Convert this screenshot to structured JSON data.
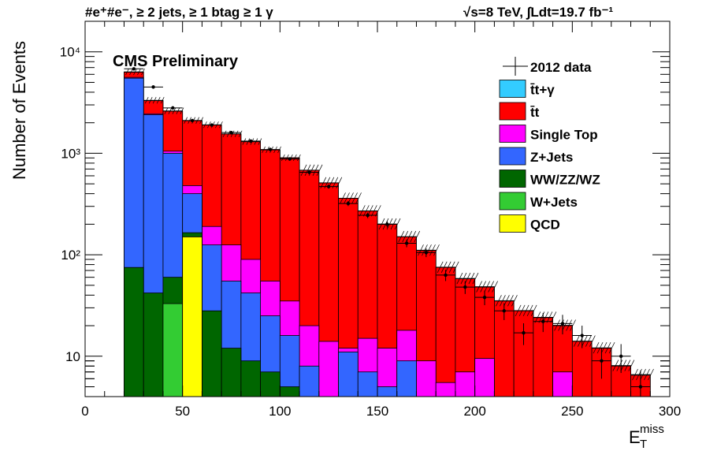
{
  "header": {
    "left": "#e⁺#e⁻, ≥ 2 jets, ≥ 1 btag ≥ 1 γ",
    "right": "√s=8 TeV,  ∫Ldt=19.7 fb⁻¹"
  },
  "chart_data": {
    "type": "bar",
    "stacked": true,
    "log_y": true,
    "title": "CMS Preliminary",
    "xlabel_main": "E",
    "xlabel_sup": "miss",
    "xlabel_sub": "T",
    "ylabel": "Number of Events",
    "xlim": [
      0,
      300
    ],
    "ylim": [
      4,
      20000
    ],
    "legend_position": "top-right",
    "x_ticks": [
      0,
      50,
      100,
      150,
      200,
      250,
      300
    ],
    "y_ticks": [
      {
        "value": 10,
        "label": "10"
      },
      {
        "value": 100,
        "label": "10²"
      },
      {
        "value": 1000,
        "label": "10³"
      },
      {
        "value": 10000,
        "label": "10⁴"
      }
    ],
    "bin_edges": [
      20,
      30,
      40,
      50,
      60,
      70,
      80,
      90,
      100,
      110,
      120,
      130,
      140,
      150,
      160,
      170,
      180,
      190,
      200,
      210,
      220,
      230,
      240,
      250,
      260,
      270,
      280,
      290
    ],
    "stack_totals": [
      {
        "name": "QCD",
        "color": "#ffff00",
        "values": [
          0,
          0,
          0,
          150,
          0,
          0,
          0,
          0,
          0,
          0,
          0,
          0,
          0,
          0,
          0,
          0,
          0,
          0,
          0,
          0,
          0,
          0,
          0,
          0,
          0,
          0,
          0
        ]
      },
      {
        "name": "W+Jets",
        "color": "#33cc33",
        "values": [
          0,
          0,
          33,
          150,
          0,
          0,
          0,
          0,
          0,
          0,
          0,
          0,
          0,
          0,
          0,
          0,
          0,
          0,
          0,
          0,
          0,
          0,
          0,
          0,
          0,
          0,
          0
        ]
      },
      {
        "name": "WW/ZZ/WZ",
        "color": "#006600",
        "values": [
          75,
          42,
          60,
          165,
          28,
          12,
          9,
          7,
          5,
          0,
          0,
          0,
          0,
          0,
          0,
          0,
          0,
          0,
          0,
          0,
          0,
          0,
          0,
          0,
          0,
          0,
          0
        ]
      },
      {
        "name": "Z+Jets",
        "color": "#3366ff",
        "values": [
          5500,
          2400,
          1000,
          400,
          125,
          55,
          42,
          25,
          16,
          8,
          0,
          11,
          7,
          5,
          9,
          0,
          0,
          0,
          0,
          0,
          0,
          0,
          0,
          0,
          0,
          0,
          0
        ]
      },
      {
        "name": "Single Top",
        "color": "#ff00ff",
        "values": [
          5600,
          2450,
          1050,
          480,
          190,
          125,
          90,
          55,
          35,
          20,
          14,
          12,
          15,
          12,
          18,
          9,
          5.5,
          7,
          9.5,
          0,
          0,
          0,
          7,
          0,
          0,
          0,
          0
        ]
      },
      {
        "name": "t̄t",
        "color": "#ff0000",
        "values": [
          6300,
          3300,
          2600,
          2100,
          1900,
          1550,
          1300,
          1080,
          900,
          680,
          510,
          360,
          270,
          200,
          150,
          110,
          75,
          58,
          48,
          35,
          28,
          24,
          20,
          14,
          12,
          8,
          6.5
        ]
      },
      {
        "name": "t̄t+γ",
        "color": "#33ccff",
        "values": [
          6350,
          3330,
          2620,
          2110,
          1910,
          1555,
          1305,
          1085,
          905,
          682,
          512,
          361,
          271,
          201,
          151,
          111,
          75.5,
          58.5,
          48.5,
          35.3,
          28.2,
          24.2,
          20.2,
          14.1,
          12.1,
          8.1,
          6.6
        ]
      }
    ],
    "data_points": [
      {
        "x": 25,
        "y": 6800
      },
      {
        "x": 35,
        "y": 4500
      },
      {
        "x": 45,
        "y": 2800
      },
      {
        "x": 55,
        "y": 2100
      },
      {
        "x": 65,
        "y": 1900
      },
      {
        "x": 75,
        "y": 1600
      },
      {
        "x": 85,
        "y": 1320
      },
      {
        "x": 95,
        "y": 1090
      },
      {
        "x": 105,
        "y": 880
      },
      {
        "x": 115,
        "y": 650
      },
      {
        "x": 125,
        "y": 470
      },
      {
        "x": 135,
        "y": 320
      },
      {
        "x": 145,
        "y": 245
      },
      {
        "x": 155,
        "y": 200
      },
      {
        "x": 165,
        "y": 130
      },
      {
        "x": 175,
        "y": 105
      },
      {
        "x": 185,
        "y": 63
      },
      {
        "x": 195,
        "y": 48
      },
      {
        "x": 205,
        "y": 38
      },
      {
        "x": 215,
        "y": 28
      },
      {
        "x": 225,
        "y": 17
      },
      {
        "x": 235,
        "y": 22
      },
      {
        "x": 245,
        "y": 21
      },
      {
        "x": 255,
        "y": 16
      },
      {
        "x": 265,
        "y": 9
      },
      {
        "x": 275,
        "y": 10
      },
      {
        "x": 285,
        "y": 5
      }
    ],
    "legend": [
      {
        "label": "2012 data",
        "kind": "data"
      },
      {
        "label": "t̄t+γ",
        "color": "#33ccff"
      },
      {
        "label": "t̄t",
        "color": "#ff0000"
      },
      {
        "label": "Single Top",
        "color": "#ff00ff"
      },
      {
        "label": "Z+Jets",
        "color": "#3366ff"
      },
      {
        "label": "WW/ZZ/WZ",
        "color": "#006600"
      },
      {
        "label": "W+Jets",
        "color": "#33cc33"
      },
      {
        "label": "QCD",
        "color": "#ffff00"
      }
    ]
  }
}
